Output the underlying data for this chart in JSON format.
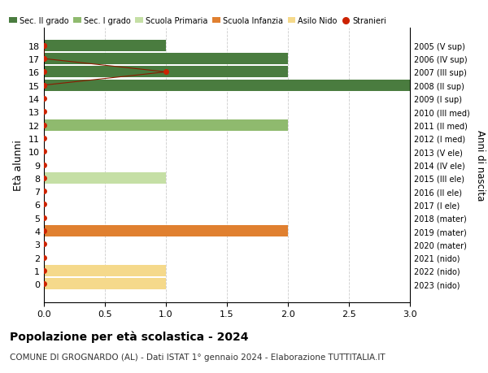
{
  "ages": [
    18,
    17,
    16,
    15,
    14,
    13,
    12,
    11,
    10,
    9,
    8,
    7,
    6,
    5,
    4,
    3,
    2,
    1,
    0
  ],
  "right_labels": [
    "2005 (V sup)",
    "2006 (IV sup)",
    "2007 (III sup)",
    "2008 (II sup)",
    "2009 (I sup)",
    "2010 (III med)",
    "2011 (II med)",
    "2012 (I med)",
    "2013 (V ele)",
    "2014 (IV ele)",
    "2015 (III ele)",
    "2016 (II ele)",
    "2017 (I ele)",
    "2018 (mater)",
    "2019 (mater)",
    "2020 (mater)",
    "2021 (nido)",
    "2022 (nido)",
    "2023 (nido)"
  ],
  "bar_values": [
    1,
    2,
    2,
    3,
    0,
    0,
    2,
    0,
    0,
    0,
    1,
    0,
    0,
    0,
    2,
    0,
    0,
    1,
    1
  ],
  "bar_colors": [
    "#4a7c3f",
    "#4a7c3f",
    "#4a7c3f",
    "#4a7c3f",
    "#4a7c3f",
    "#4a7c3f",
    "#8fba6e",
    "#8fba6e",
    "#8fba6e",
    "#c5dfa5",
    "#c5dfa5",
    "#c5dfa5",
    "#c5dfa5",
    "#c5dfa5",
    "#e08030",
    "#e08030",
    "#e08030",
    "#f5d98b",
    "#f5d98b"
  ],
  "stranieri_ages": [
    18,
    17,
    16,
    15
  ],
  "stranieri_vals": [
    0,
    0,
    1,
    0
  ],
  "legend_labels": [
    "Sec. II grado",
    "Sec. I grado",
    "Scuola Primaria",
    "Scuola Infanzia",
    "Asilo Nido",
    "Stranieri"
  ],
  "legend_colors": [
    "#4a7c3f",
    "#8fba6e",
    "#c5dfa5",
    "#e08030",
    "#f5d98b",
    "#cc2200"
  ],
  "ylabel": "Età alunni",
  "right_ylabel": "Anni di nascita",
  "xlim": [
    0,
    3.0
  ],
  "xticks": [
    0,
    0.5,
    1.0,
    1.5,
    2.0,
    2.5,
    3.0
  ],
  "title": "Popolazione per età scolastica - 2024",
  "subtitle": "COMUNE DI GROGNARDO (AL) - Dati ISTAT 1° gennaio 2024 - Elaborazione TUTTITALIA.IT",
  "bg_color": "#ffffff",
  "bar_height": 0.85,
  "grid_color": "#cccccc",
  "stranieri_color": "#cc2200",
  "stranieri_line_color": "#8b1a00"
}
